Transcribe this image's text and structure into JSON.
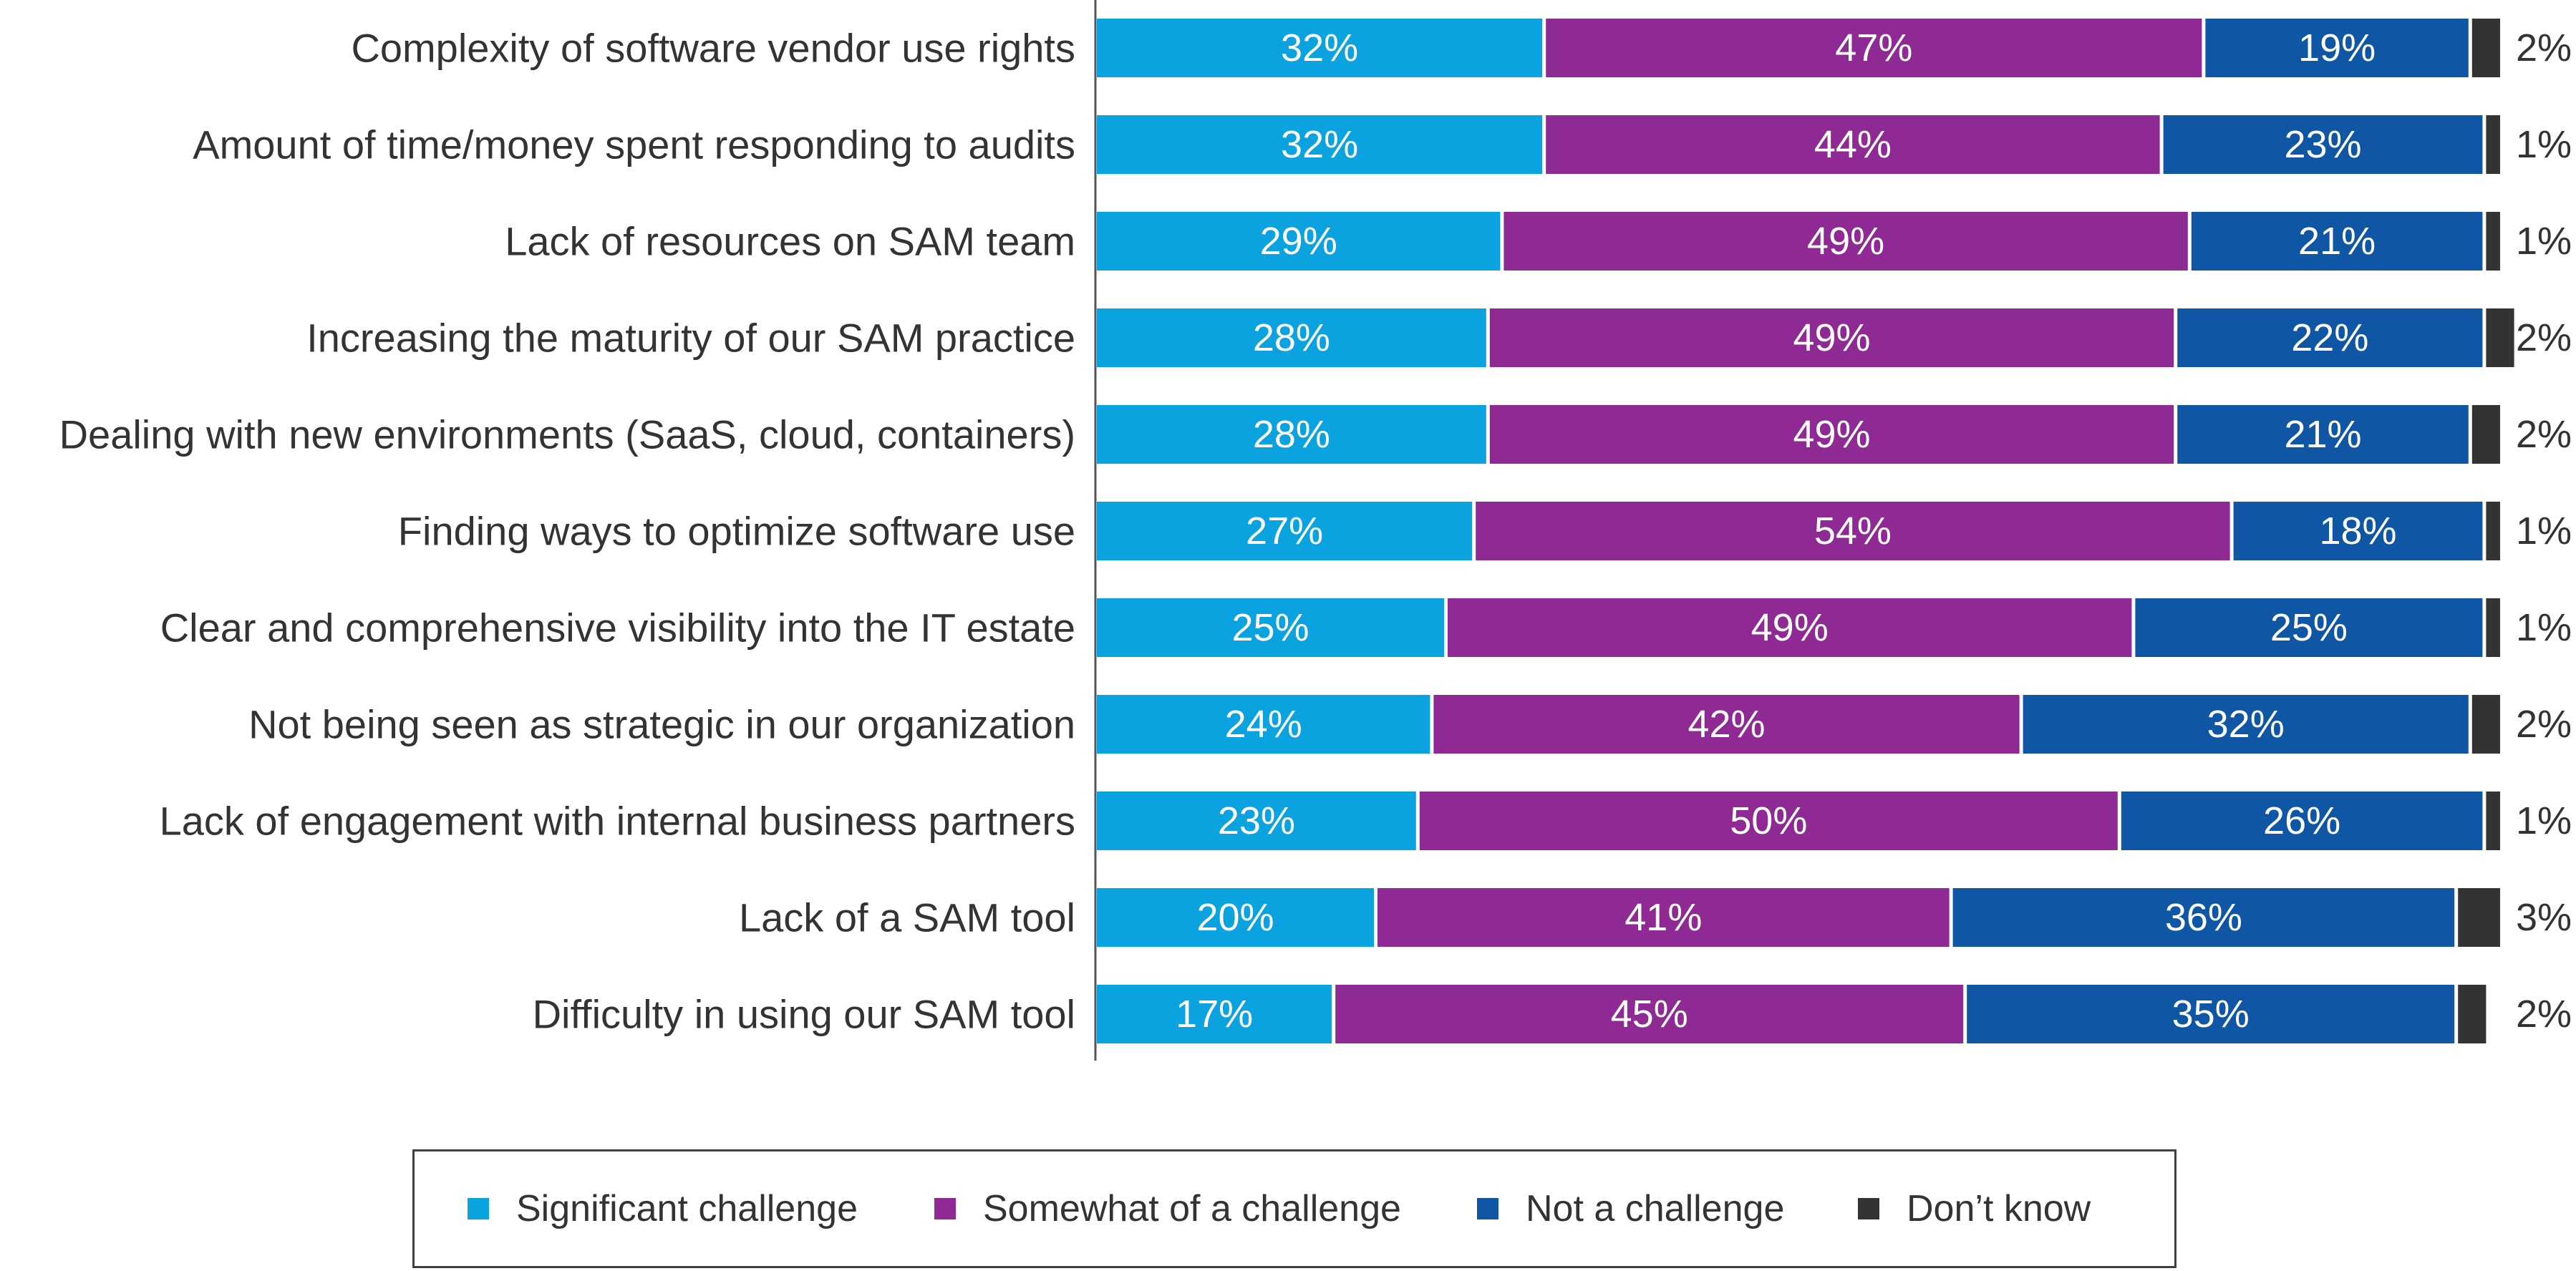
{
  "chart_data": {
    "type": "bar",
    "orientation": "horizontal",
    "stacked": true,
    "value_format": "percent",
    "categories": [
      "Complexity of software vendor use rights",
      "Amount of time/money spent responding to audits",
      "Lack of resources on SAM team",
      "Increasing the maturity of our SAM practice",
      "Dealing with new environments (SaaS, cloud, containers)",
      "Finding ways to optimize software use",
      "Clear and comprehensive visibility into the IT estate",
      "Not being seen as strategic in our organization",
      "Lack of engagement with internal business partners",
      "Lack of a SAM tool",
      "Difficulty in using our SAM tool"
    ],
    "series": [
      {
        "name": "Significant challenge",
        "color": "#0aa3e0",
        "values": [
          32,
          32,
          29,
          28,
          28,
          27,
          25,
          24,
          23,
          20,
          17
        ]
      },
      {
        "name": "Somewhat of a challenge",
        "color": "#8f2a94",
        "values": [
          47,
          44,
          49,
          49,
          49,
          54,
          49,
          42,
          50,
          41,
          45
        ]
      },
      {
        "name": "Not a challenge",
        "color": "#0f57a4",
        "values": [
          19,
          23,
          21,
          22,
          21,
          18,
          25,
          32,
          26,
          36,
          35
        ]
      },
      {
        "name": "Don’t know",
        "color": "#333333",
        "values": [
          2,
          1,
          1,
          2,
          2,
          1,
          1,
          2,
          1,
          3,
          2
        ]
      }
    ],
    "data_labels": "inside bar (white); Don’t know shown to the right of bar",
    "legend_position": "bottom",
    "grid": false,
    "xlim": [
      0,
      100
    ]
  }
}
